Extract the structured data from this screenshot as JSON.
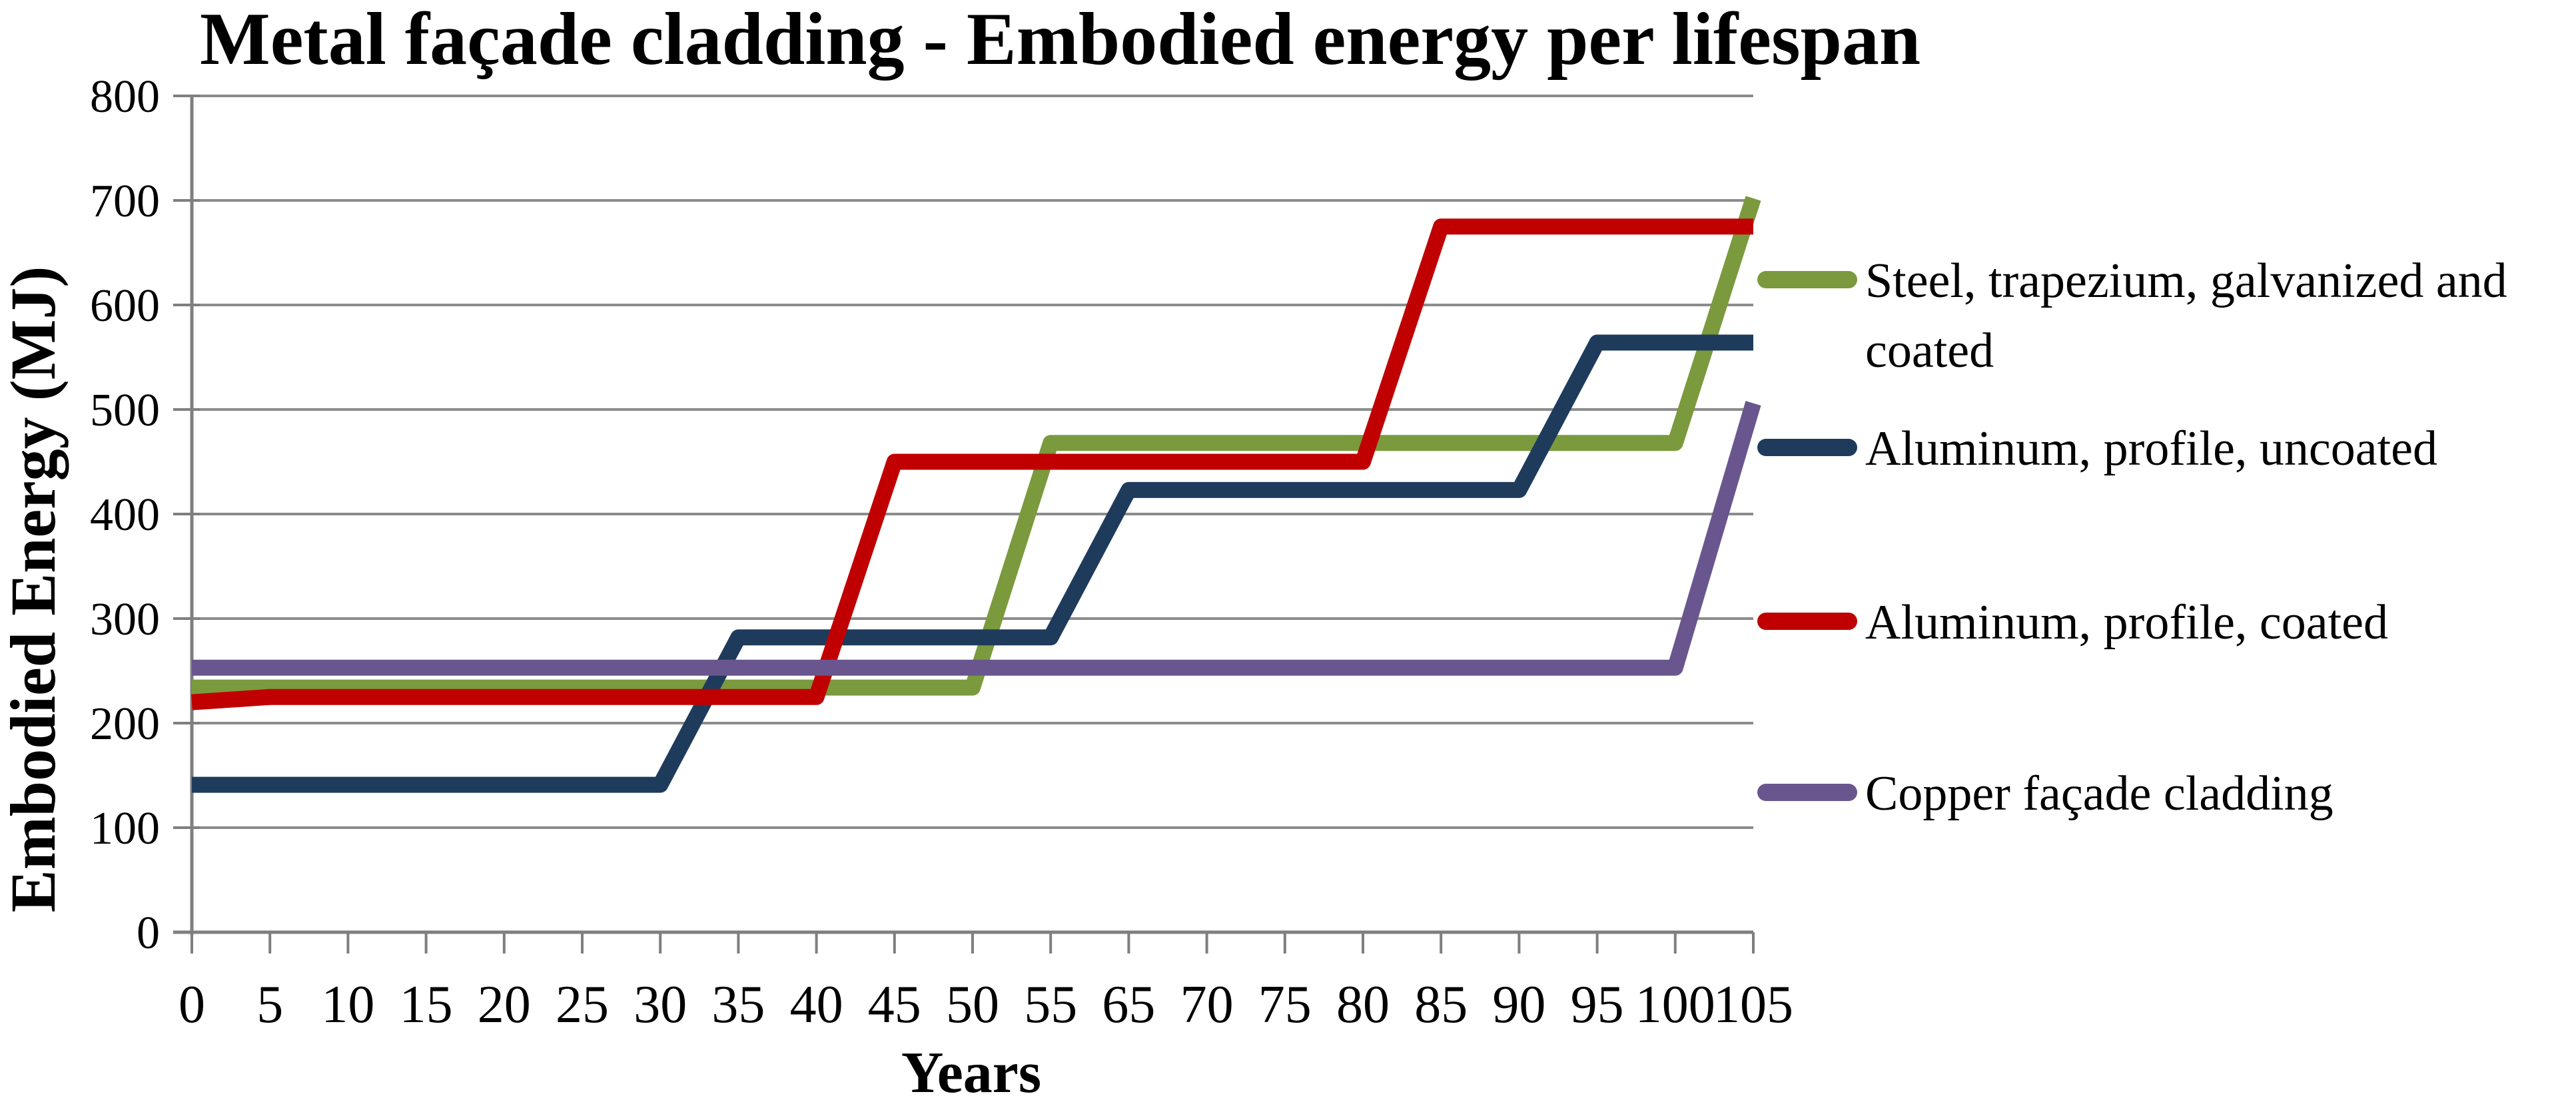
{
  "title": "Metal façade cladding - Embodied energy per lifespan",
  "colors": {
    "background": "#FFFFFF",
    "gridline": "#8C8C8C",
    "axis": "#7F7F7F",
    "text": "#000000"
  },
  "chart_data": {
    "type": "line",
    "title": "Metal façade cladding - Embodied energy per lifespan",
    "xlabel": "Years",
    "ylabel": "Embodied Energy (MJ)",
    "x_categories": [
      "0",
      "5",
      "10",
      "15",
      "20",
      "25",
      "30",
      "35",
      "40",
      "45",
      "50",
      "55",
      "65",
      "70",
      "75",
      "80",
      "85",
      "90",
      "95",
      "100",
      "105"
    ],
    "y_ticks": [
      0,
      100,
      200,
      300,
      400,
      500,
      600,
      700,
      800
    ],
    "ylim": [
      0,
      800
    ],
    "grid": "horizontal",
    "legend_position": "right",
    "series": [
      {
        "name": "Steel, trapezium, galvanized and coated",
        "legend_lines": [
          "Steel, trapezium, galvanized and",
          "coated"
        ],
        "color": "#7A9A3D",
        "values": [
          234,
          234,
          234,
          234,
          234,
          234,
          234,
          234,
          234,
          234,
          234,
          468,
          468,
          468,
          468,
          468,
          468,
          468,
          468,
          468,
          702
        ]
      },
      {
        "name": "Aluminum, profile, uncoated",
        "legend_lines": [
          "Aluminum, profile, uncoated"
        ],
        "color": "#1F3B5C",
        "values": [
          141,
          141,
          141,
          141,
          141,
          141,
          141,
          282,
          282,
          282,
          282,
          282,
          423,
          423,
          423,
          423,
          423,
          423,
          564,
          564,
          564
        ]
      },
      {
        "name": "Aluminum, profile, coated",
        "legend_lines": [
          "Aluminum, profile, coated"
        ],
        "color": "#C00000",
        "values": [
          220,
          225,
          225,
          225,
          225,
          225,
          225,
          225,
          225,
          450,
          450,
          450,
          450,
          450,
          450,
          450,
          675,
          675,
          675,
          675,
          675
        ]
      },
      {
        "name": "Copper façade cladding",
        "legend_lines": [
          "Copper façade cladding"
        ],
        "color": "#6A568E",
        "values": [
          253,
          253,
          253,
          253,
          253,
          253,
          253,
          253,
          253,
          253,
          253,
          253,
          253,
          253,
          253,
          253,
          253,
          253,
          253,
          253,
          506
        ]
      }
    ]
  }
}
